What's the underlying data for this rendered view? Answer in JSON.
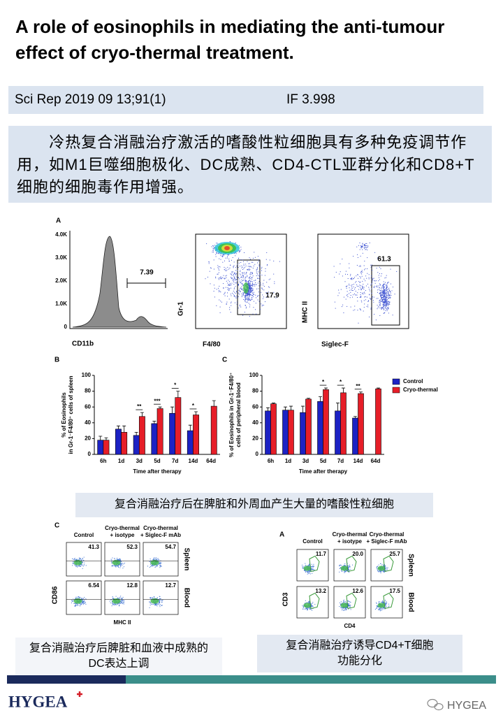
{
  "header": {
    "title": "A role of eosinophils in mediating the anti-tumour effect of cryo-thermal treatment."
  },
  "citation": {
    "journal": "Sci Rep 2019 09 13;91(1)",
    "impact": "IF 3.998"
  },
  "summary": "冷热复合消融治疗激活的嗜酸性粒细胞具有多种免疫调节作用，如M1巨噬细胞极化、DC成熟、CD4-CTL亚群分化和CD8+T细胞的细胞毒作用增强。",
  "figure_a": {
    "panel": "A",
    "histogram": {
      "yticks": [
        "4.0K",
        "3.0K",
        "2.0K",
        "1.0K",
        "0"
      ],
      "xlabel": "CD11b",
      "gate": "7.39"
    },
    "dot_plots": [
      {
        "ylabel": "Gr-1",
        "xlabel": "F4/80",
        "gate": "17.9"
      },
      {
        "ylabel": "MHC II",
        "xlabel": "Siglec-F",
        "gate": "61.3"
      }
    ]
  },
  "chart_data": [
    {
      "type": "bar",
      "panel": "B",
      "ylabel": [
        "% of Eosinophils",
        "in Gr-1⁻F4/80⁺ cells of spleen"
      ],
      "xlabel": "Time after therapy",
      "categories": [
        "6h",
        "1d",
        "3d",
        "5d",
        "7d",
        "14d",
        "64d"
      ],
      "series": [
        {
          "name": "Control",
          "color": "#1c22c4",
          "values": [
            18,
            32,
            24,
            39,
            52,
            30,
            null
          ],
          "errors": [
            5,
            4,
            4,
            3,
            8,
            7,
            null
          ]
        },
        {
          "name": "Cryo-thermal",
          "color": "#e61e28",
          "values": [
            18,
            28,
            48,
            58,
            72,
            50,
            61
          ],
          "errors": [
            3,
            8,
            5,
            2,
            8,
            4,
            7
          ]
        }
      ],
      "significance": [
        null,
        null,
        "**",
        "***",
        "*",
        "*",
        null
      ],
      "ylim": [
        0,
        100
      ],
      "yticks": [
        0,
        20,
        40,
        60,
        80,
        100
      ],
      "legend": false
    },
    {
      "type": "bar",
      "panel": "C",
      "ylabel": [
        "% of Eosinophils in Gr-1⁻F4/80⁺",
        "cells of peripheral blood"
      ],
      "xlabel": "Time after therapy",
      "categories": [
        "6h",
        "1d",
        "3d",
        "5d",
        "7d",
        "14d",
        "64d"
      ],
      "series": [
        {
          "name": "Control",
          "color": "#1c22c4",
          "values": [
            55,
            56,
            53,
            67,
            55,
            46,
            null
          ],
          "errors": [
            4,
            4,
            8,
            6,
            10,
            2,
            null
          ]
        },
        {
          "name": "Cryo-thermal",
          "color": "#e61e28",
          "values": [
            64,
            56,
            70,
            82,
            78,
            77,
            83
          ],
          "errors": [
            1,
            5,
            1,
            2,
            6,
            2,
            1
          ]
        }
      ],
      "significance": [
        null,
        null,
        null,
        "*",
        "*",
        "**",
        null
      ],
      "ylim": [
        0,
        100
      ],
      "yticks": [
        0,
        20,
        40,
        60,
        80,
        100
      ],
      "legend": true
    }
  ],
  "captions": [
    "复合消融治疗后在脾脏和外周血产生大量的嗜酸性粒细胞",
    "复合消融治疗后脾脏和血液中成熟的DC表达上调",
    "复合消融治疗诱导CD4+T细胞功能分化"
  ],
  "figure_dc": {
    "panel": "C",
    "columns": [
      "Control",
      "Cryo-thermal\n+ isotype",
      "Cryo-thermal\n+ Siglec-F mAb"
    ],
    "rows": [
      "Spleen",
      "Blood"
    ],
    "values": [
      [
        "41.3",
        "52.3",
        "54.7"
      ],
      [
        "6.54",
        "12.8",
        "12.7"
      ]
    ],
    "ylabel": "CD86",
    "xlabel": "MHC II"
  },
  "figure_cd4": {
    "panel": "A",
    "columns": [
      "Control",
      "Cryo-thermal\n+ isotype",
      "Cryo-thermal\n+ Siglec-F mAb"
    ],
    "rows": [
      "Spleen",
      "Blood"
    ],
    "values": [
      [
        "11.7",
        "20.0",
        "25.7"
      ],
      [
        "13.2",
        "12.6",
        "17.5"
      ]
    ],
    "ylabel": "CD3",
    "xlabel": "CD4"
  },
  "footer": {
    "logo": "HYGEA",
    "account": "HYGEA"
  }
}
